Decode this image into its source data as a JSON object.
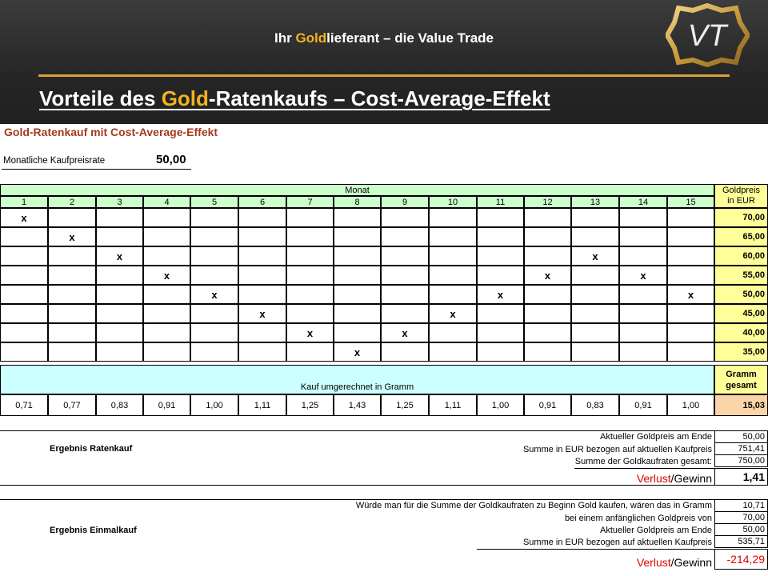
{
  "header": {
    "tagline_prefix": "Ihr ",
    "tagline_gold": "Gold",
    "tagline_suffix": "lieferant – die Value Trade",
    "title_prefix": "Vorteile des ",
    "title_gold": "Gold",
    "title_suffix": "-Ratenkaufs – Cost-Average-Effekt",
    "logo_text": "VT"
  },
  "sheet": {
    "title": "Gold-Ratenkauf mit Cost-Average-Effekt",
    "rate_label": "Monatliche Kaufpreisrate",
    "rate_value": "50,00",
    "month_header": "Monat",
    "price_header_1": "Goldpreis",
    "price_header_2": "in EUR",
    "months": [
      "1",
      "2",
      "3",
      "4",
      "5",
      "6",
      "7",
      "8",
      "9",
      "10",
      "11",
      "12",
      "13",
      "14",
      "15"
    ],
    "price_rows": [
      {
        "price": "70,00",
        "marks": [
          1
        ]
      },
      {
        "price": "65,00",
        "marks": [
          2
        ]
      },
      {
        "price": "60,00",
        "marks": [
          3,
          13
        ]
      },
      {
        "price": "55,00",
        "marks": [
          4,
          12,
          14
        ]
      },
      {
        "price": "50,00",
        "marks": [
          5,
          11,
          15
        ]
      },
      {
        "price": "45,00",
        "marks": [
          6,
          10
        ]
      },
      {
        "price": "40,00",
        "marks": [
          7,
          9
        ]
      },
      {
        "price": "35,00",
        "marks": [
          8
        ]
      }
    ],
    "mark_symbol": "x",
    "gram_header": "Kauf umgerechnet in Gramm",
    "total_header_1": "Gramm",
    "total_header_2": "gesamt",
    "grams": [
      "0,71",
      "0,77",
      "0,83",
      "0,91",
      "1,00",
      "1,11",
      "1,25",
      "1,43",
      "1,25",
      "1,11",
      "1,00",
      "0,91",
      "0,83",
      "0,91",
      "1,00"
    ],
    "grams_total": "15,03"
  },
  "result_ratenkauf": {
    "title": "Ergebnis Ratenkauf",
    "rows": [
      {
        "label": "Aktueller Goldpreis am Ende",
        "value": "50,00"
      },
      {
        "label": "Summe in EUR bezogen auf aktuellen Kaufpreis",
        "value": "751,41"
      },
      {
        "label": "Summe der Goldkaufraten gesamt:",
        "value": "750,00"
      }
    ],
    "pl_red": "Verlust",
    "pl_rest": "/Gewinn",
    "pl_value": "1,41"
  },
  "result_einmalkauf": {
    "title": "Ergebnis Einmalkauf",
    "rows": [
      {
        "label": "Würde man für die Summe der Goldkaufraten zu Beginn Gold kaufen, wären das in Gramm",
        "value": "10,71"
      },
      {
        "label": "bei einem anfänglichen Goldpreis von",
        "value": "70,00"
      },
      {
        "label": "Aktueller Goldpreis am Ende",
        "value": "50,00"
      },
      {
        "label": "Summe in EUR bezogen auf aktuellen Kaufpreis",
        "value": "535,71"
      }
    ],
    "pl_red": "Verlust",
    "pl_rest": "/Gewinn",
    "pl_value": "-214,29"
  }
}
